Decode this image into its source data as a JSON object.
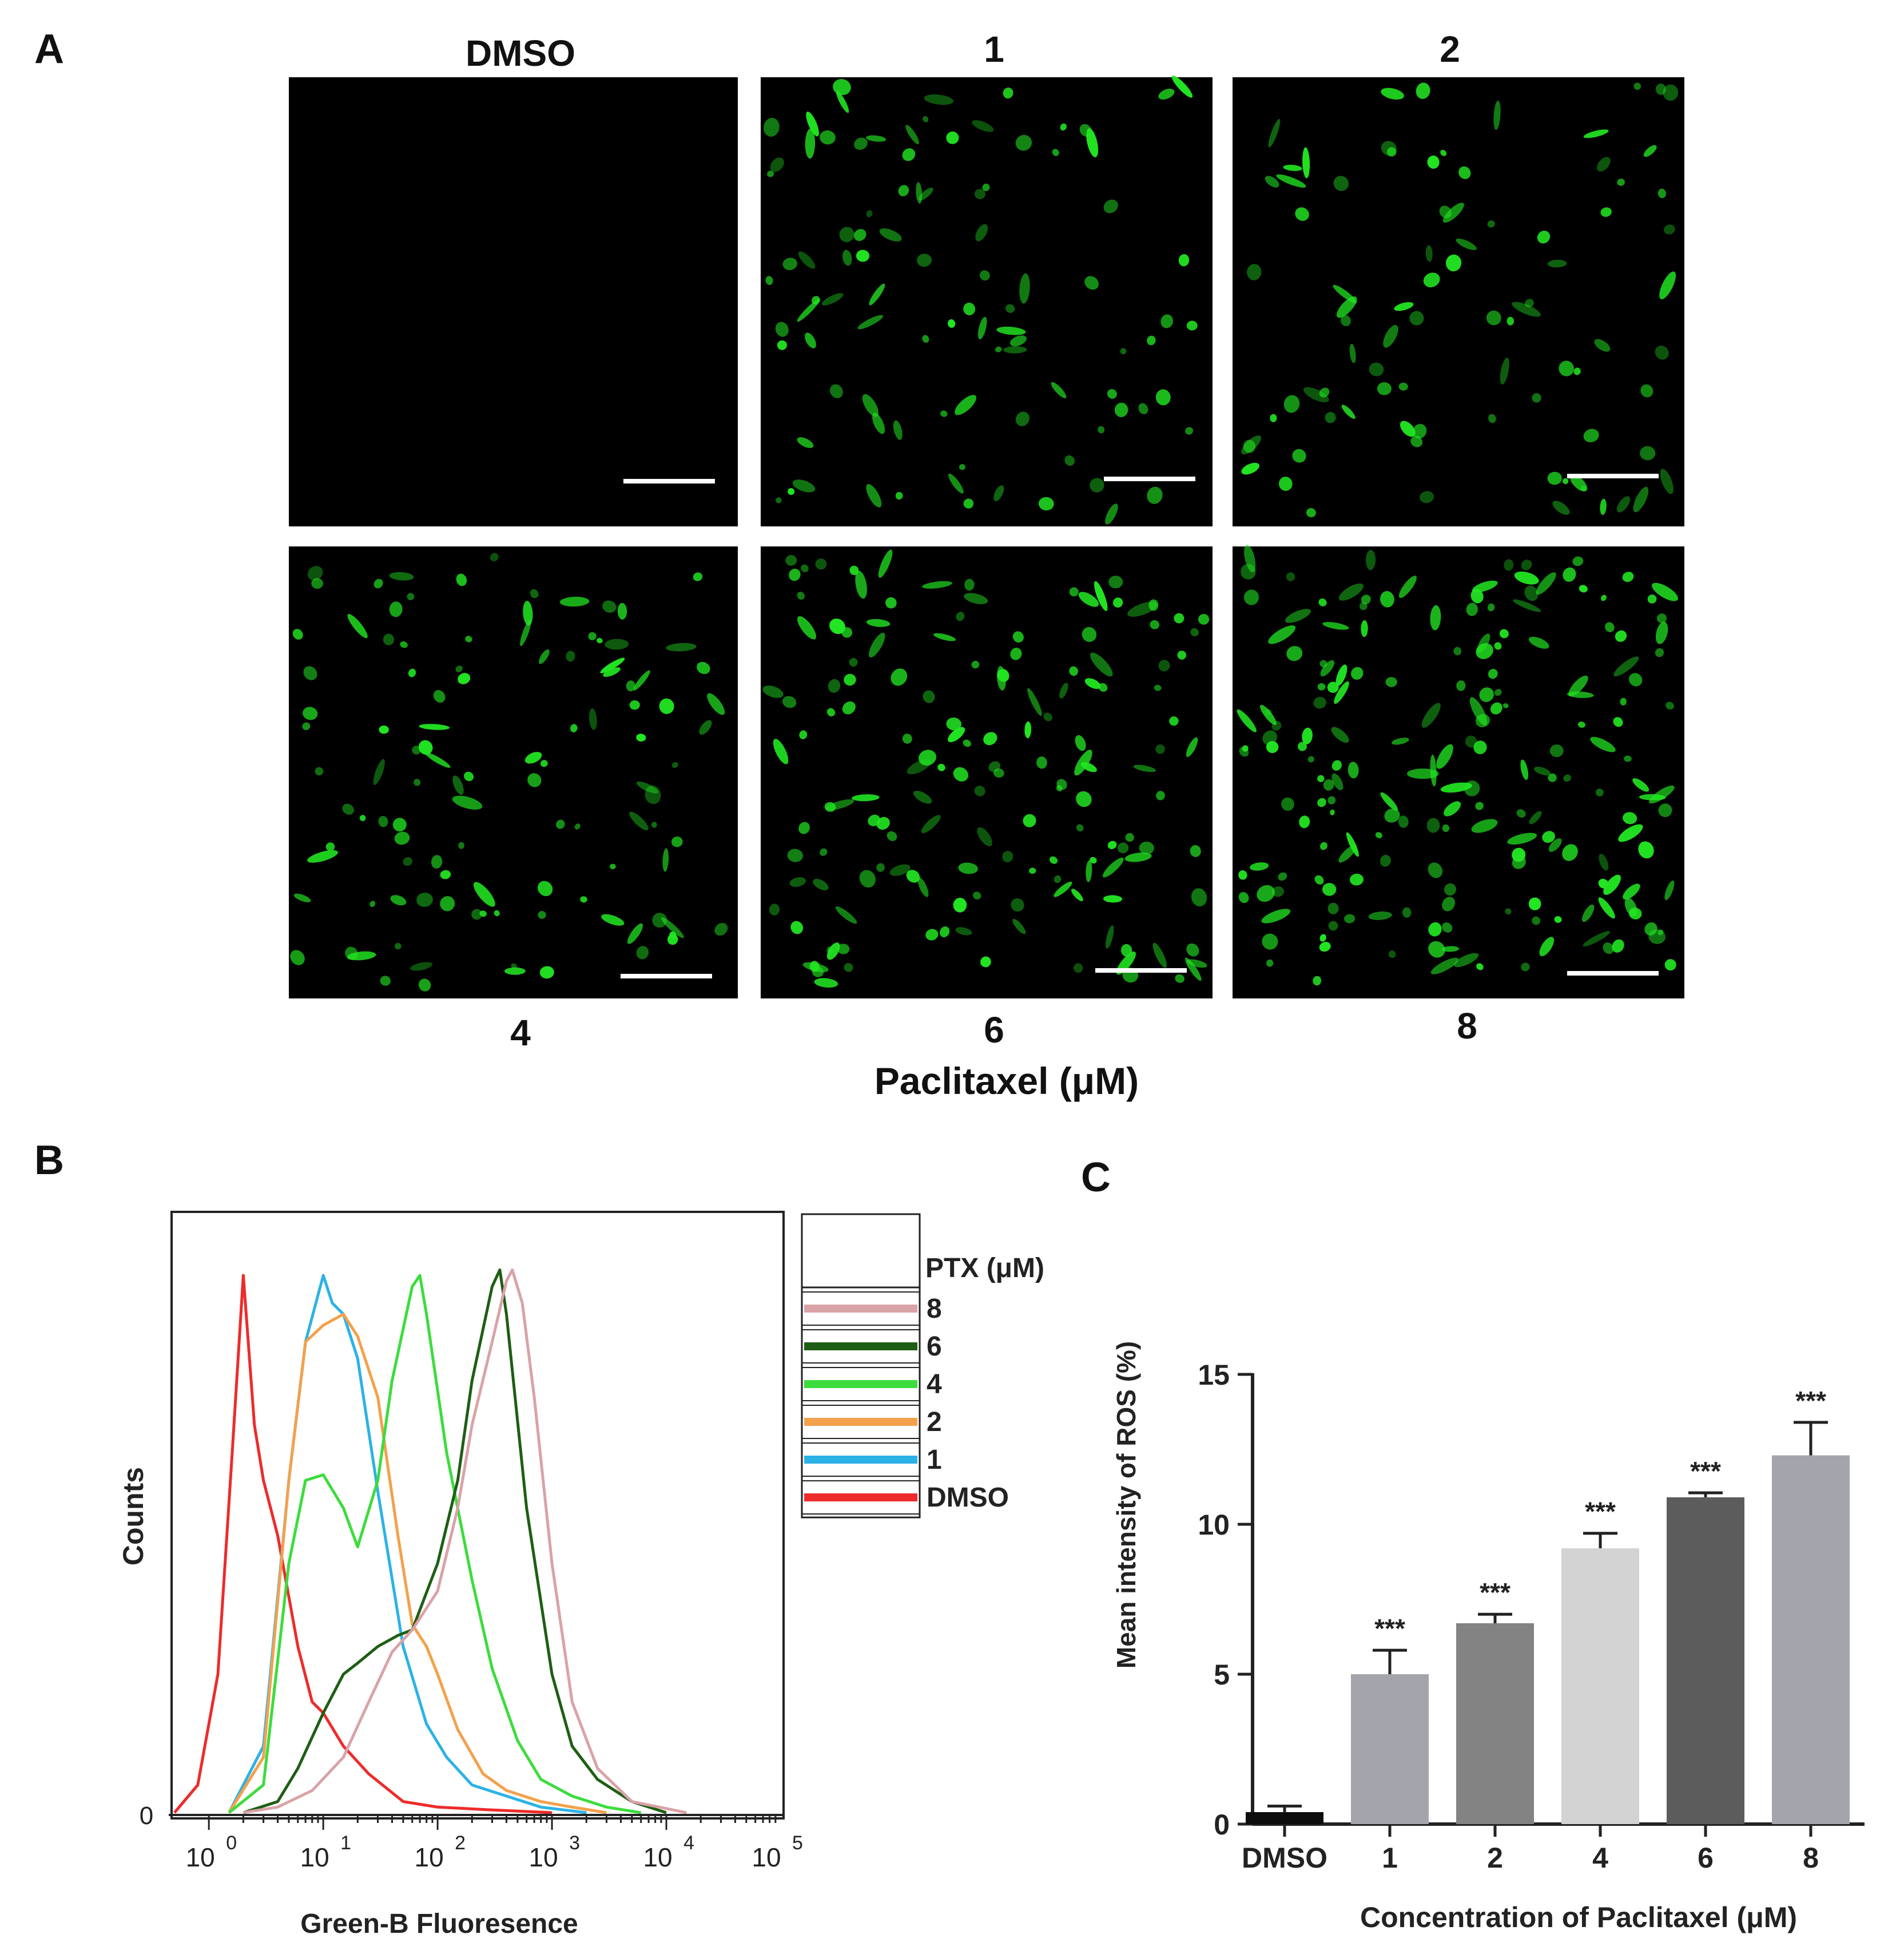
{
  "figure": {
    "panel_labels": {
      "a": "A",
      "b": "B",
      "c": "C"
    }
  },
  "panel_a": {
    "top_labels": [
      "DMSO",
      "1",
      "2"
    ],
    "bottom_labels": [
      "4",
      "6",
      "8"
    ],
    "axis_label": "Paclitaxel (μM)",
    "fluorescence_color": "#22e622",
    "background_color": "#000000"
  },
  "chart_data": [
    {
      "type": "line",
      "panel": "B",
      "ylabel": "Counts",
      "xlabel": "Green-B Fluoresence",
      "x_scale": "log",
      "xlim": [
        0.5,
        100000
      ],
      "x_ticks": [
        1,
        10,
        100,
        1000,
        10000,
        100000
      ],
      "x_tick_labels": [
        {
          "base": "10",
          "exp": "0"
        },
        {
          "base": "10",
          "exp": "1"
        },
        {
          "base": "10",
          "exp": "2"
        },
        {
          "base": "10",
          "exp": "3"
        },
        {
          "base": "10",
          "exp": "4"
        },
        {
          "base": "10",
          "exp": "5"
        }
      ],
      "y_tick_labels": [
        "0"
      ],
      "ylim": [
        0,
        1
      ],
      "legend_title": "PTX (μM)",
      "legend_position": "right",
      "series": [
        {
          "name": "8",
          "color": "#d9a3a8",
          "x": [
            2,
            4,
            8,
            15,
            25,
            40,
            60,
            100,
            150,
            200,
            300,
            400,
            450,
            550,
            700,
            1000,
            1500,
            2500,
            5000,
            15000
          ],
          "y": [
            0,
            0.01,
            0.04,
            0.1,
            0.2,
            0.29,
            0.33,
            0.4,
            0.55,
            0.7,
            0.85,
            0.96,
            0.98,
            0.92,
            0.75,
            0.45,
            0.2,
            0.08,
            0.02,
            0
          ]
        },
        {
          "name": "6",
          "color": "#1e5e14",
          "x": [
            2,
            4,
            6,
            10,
            15,
            20,
            30,
            45,
            60,
            100,
            150,
            200,
            300,
            350,
            400,
            600,
            1000,
            1500,
            2500,
            5000,
            10000
          ],
          "y": [
            0,
            0.02,
            0.08,
            0.18,
            0.25,
            0.27,
            0.3,
            0.32,
            0.33,
            0.45,
            0.6,
            0.78,
            0.95,
            0.98,
            0.9,
            0.55,
            0.25,
            0.12,
            0.06,
            0.02,
            0
          ]
        },
        {
          "name": "4",
          "color": "#3ddc3d",
          "x": [
            1.5,
            3,
            5,
            7,
            10,
            15,
            20,
            30,
            40,
            60,
            70,
            80,
            120,
            200,
            300,
            500,
            800,
            1500,
            3000,
            6000
          ],
          "y": [
            0,
            0.05,
            0.45,
            0.6,
            0.61,
            0.55,
            0.48,
            0.6,
            0.78,
            0.95,
            0.97,
            0.9,
            0.65,
            0.42,
            0.26,
            0.13,
            0.06,
            0.03,
            0.01,
            0
          ]
        },
        {
          "name": "2",
          "color": "#f3a14c",
          "x": [
            1.5,
            3,
            5,
            7,
            10,
            15,
            20,
            30,
            45,
            60,
            80,
            100,
            150,
            250,
            400,
            800,
            1500,
            3000
          ],
          "y": [
            0,
            0.1,
            0.6,
            0.85,
            0.88,
            0.9,
            0.86,
            0.75,
            0.5,
            0.34,
            0.3,
            0.25,
            0.15,
            0.07,
            0.04,
            0.02,
            0.01,
            0
          ]
        },
        {
          "name": "1",
          "color": "#2cb2e6",
          "x": [
            1.5,
            3,
            5,
            7,
            10,
            12,
            15,
            20,
            30,
            50,
            80,
            120,
            200,
            400,
            800,
            2000
          ],
          "y": [
            0,
            0.12,
            0.6,
            0.85,
            0.97,
            0.92,
            0.9,
            0.82,
            0.58,
            0.3,
            0.16,
            0.1,
            0.05,
            0.03,
            0.01,
            0
          ]
        },
        {
          "name": "DMSO",
          "color": "#ee2b2b",
          "x": [
            0.5,
            0.8,
            1.2,
            1.6,
            2,
            2.5,
            3,
            4,
            6,
            8,
            10,
            15,
            25,
            50,
            100,
            300,
            1000
          ],
          "y": [
            0,
            0.05,
            0.25,
            0.65,
            0.97,
            0.7,
            0.6,
            0.5,
            0.3,
            0.2,
            0.18,
            0.12,
            0.07,
            0.02,
            0.01,
            0.005,
            0
          ]
        }
      ]
    },
    {
      "type": "bar",
      "panel": "C",
      "categories": [
        "DMSO",
        "1",
        "2",
        "4",
        "6",
        "8"
      ],
      "values": [
        0.4,
        5.0,
        6.7,
        9.2,
        10.9,
        12.3
      ],
      "errors": [
        0.2,
        0.8,
        0.3,
        0.5,
        0.15,
        1.1
      ],
      "significance": [
        "",
        "***",
        "***",
        "***",
        "***",
        "***"
      ],
      "colors": [
        "#0d0d0d",
        "#a4a4ac",
        "#838383",
        "#d3d3d3",
        "#5c5c5c",
        "#a4a4ac"
      ],
      "ylabel": "Mean intensity of ROS (%)",
      "xlabel": "Concentration of Paclitaxel (μM)",
      "ylim": [
        0,
        15
      ],
      "y_ticks": [
        0,
        5,
        10,
        15
      ]
    }
  ]
}
